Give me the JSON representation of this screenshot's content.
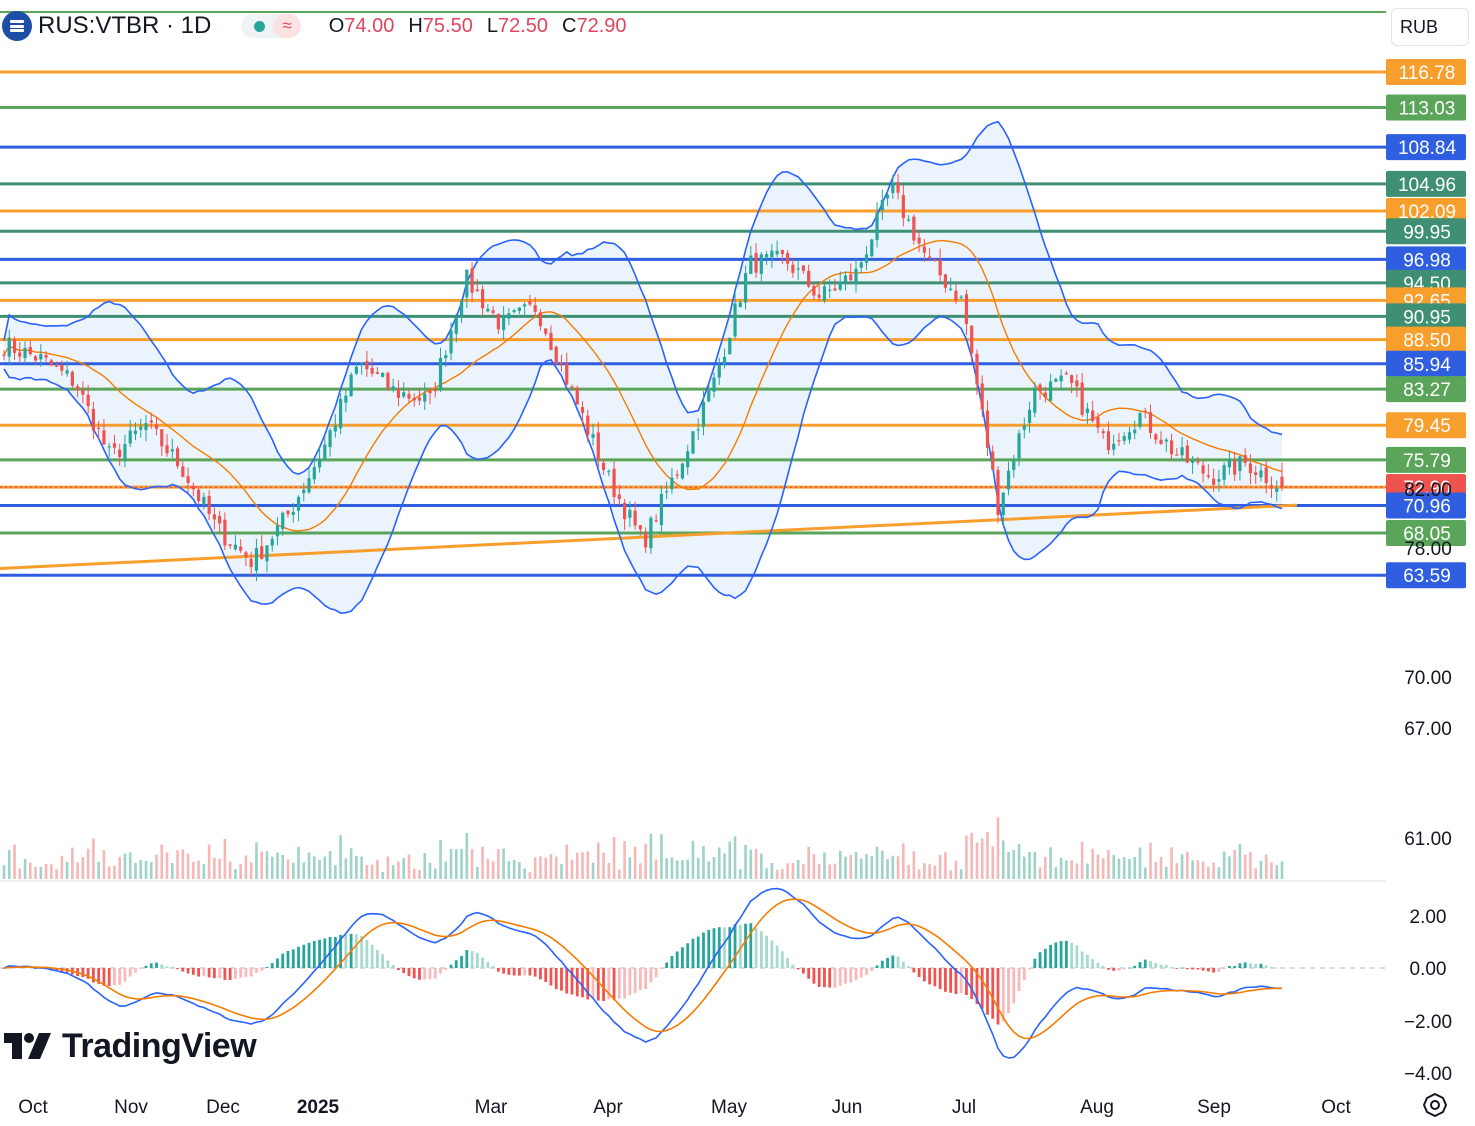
{
  "header": {
    "symbol": "RUS:VTBR · 1D",
    "ohlc": {
      "o_label": "O",
      "o": "74.00",
      "h_label": "H",
      "h": "75.50",
      "l_label": "L",
      "l": "72.50",
      "c_label": "C",
      "c": "72.90"
    }
  },
  "currency_button": "RUB",
  "logo_text": "TradingView",
  "colors": {
    "up": "#26a69a",
    "down": "#ef5350",
    "bb": "#2962ff",
    "ma": "#f57c00",
    "bb_fill": "#e8f1fb"
  },
  "chart_data": [
    {
      "type": "candlestick",
      "title": "RUS:VTBR · 1D",
      "x_tick_labels": [
        "Oct",
        "Nov",
        "Dec",
        "2025",
        "Mar",
        "Apr",
        "May",
        "Jun",
        "Jul",
        "Aug",
        "Sep",
        "Oct"
      ],
      "y_tick_labels": [
        "61.00",
        "67.00",
        "70.00",
        "78.00",
        "82.00"
      ],
      "ylim": [
        58.5,
        118.5
      ],
      "y_scale": "linear",
      "price_levels": [
        {
          "value": 116.78,
          "label": "116.78",
          "color": "#f89e2c"
        },
        {
          "value": 113.03,
          "label": "113.03",
          "color": "#5aa55a"
        },
        {
          "value": 108.84,
          "label": "108.84",
          "color": "#2f5fe0"
        },
        {
          "value": 104.96,
          "label": "104.96",
          "color": "#3e8f74"
        },
        {
          "value": 102.09,
          "label": "102.09",
          "color": "#f89e2c"
        },
        {
          "value": 99.95,
          "label": "99.95",
          "color": "#3e8f74"
        },
        {
          "value": 96.98,
          "label": "96.98",
          "color": "#2f5fe0"
        },
        {
          "value": 94.5,
          "label": "94.50",
          "color": "#3e8f74"
        },
        {
          "value": 92.65,
          "label": "92.65",
          "color": "#f89e2c"
        },
        {
          "value": 90.95,
          "label": "90.95",
          "color": "#3e8f74"
        },
        {
          "value": 88.5,
          "label": "88.50",
          "color": "#f89e2c"
        },
        {
          "value": 85.94,
          "label": "85.94",
          "color": "#2f5fe0"
        },
        {
          "value": 83.27,
          "label": "83.27",
          "color": "#5aa55a"
        },
        {
          "value": 79.45,
          "label": "79.45",
          "color": "#f89e2c"
        },
        {
          "value": 75.79,
          "label": "75.79",
          "color": "#5aa55a"
        },
        {
          "value": 72.91,
          "label": "72.91",
          "color": "#f89e2c"
        },
        {
          "value": 72.9,
          "label": "72.90",
          "color": "#ef5350",
          "dotted": true
        },
        {
          "value": 70.96,
          "label": "70.96",
          "color": "#2f5fe0"
        },
        {
          "value": 68.05,
          "label": "68.05",
          "color": "#5aa55a"
        },
        {
          "value": 63.59,
          "label": "63.59",
          "color": "#2f5fe0"
        }
      ],
      "trend_line": {
        "color": "#f89e2c",
        "points": [
          {
            "x": "Sep 2024",
            "y": 64.3
          },
          {
            "x": "Sep 2025",
            "y": 71.0
          }
        ]
      },
      "close_waypoints": [
        {
          "x": "Sep 2024",
          "close": 88.0
        },
        {
          "x": "Oct 2024",
          "close": 86.5
        },
        {
          "x": "Oct 2024",
          "close": 84.0
        },
        {
          "x": "Nov 2024",
          "close": 76.0
        },
        {
          "x": "Nov 2024",
          "close": 79.5
        },
        {
          "x": "Nov 2024",
          "close": 75.0
        },
        {
          "x": "Dec 2024",
          "close": 68.5
        },
        {
          "x": "Dec 2024",
          "close": 65.0
        },
        {
          "x": "Dec 2024",
          "close": 70.0
        },
        {
          "x": "Jan 2025",
          "close": 77.0
        },
        {
          "x": "Jan 2025",
          "close": 86.0
        },
        {
          "x": "Feb 2025",
          "close": 83.0
        },
        {
          "x": "Feb 2025",
          "close": 82.0
        },
        {
          "x": "Feb 2025",
          "close": 95.0
        },
        {
          "x": "Mar 2025",
          "close": 90.0
        },
        {
          "x": "Mar 2025",
          "close": 92.0
        },
        {
          "x": "Apr 2025",
          "close": 83.0
        },
        {
          "x": "Apr 2025",
          "close": 74.0
        },
        {
          "x": "Apr 2025",
          "close": 67.0
        },
        {
          "x": "Apr 2025",
          "close": 75.0
        },
        {
          "x": "Apr 2025",
          "close": 84.0
        },
        {
          "x": "May 2025",
          "close": 96.5
        },
        {
          "x": "May 2025",
          "close": 97.0
        },
        {
          "x": "Jun 2025",
          "close": 93.0
        },
        {
          "x": "Jun 2025",
          "close": 95.5
        },
        {
          "x": "Jun 2025",
          "close": 104.5
        },
        {
          "x": "Jul 2025",
          "close": 97.0
        },
        {
          "x": "Jul 2025",
          "close": 92.5
        },
        {
          "x": "Jul 2025",
          "close": 71.0
        },
        {
          "x": "Jul 2025",
          "close": 83.0
        },
        {
          "x": "Aug 2025",
          "close": 84.0
        },
        {
          "x": "Aug 2025",
          "close": 77.5
        },
        {
          "x": "Aug 2025",
          "close": 80.5
        },
        {
          "x": "Aug 2025",
          "close": 76.5
        },
        {
          "x": "Sep 2025",
          "close": 74.0
        },
        {
          "x": "Sep 2025",
          "close": 75.5
        },
        {
          "x": "Sep 2025",
          "close": 72.9
        }
      ],
      "last_ohlc": {
        "open": 74.0,
        "high": 75.5,
        "low": 72.5,
        "close": 72.9
      },
      "overlays": [
        "Bollinger Bands",
        "Moving average"
      ],
      "volume": "shown"
    },
    {
      "type": "line",
      "indicator": "MACD",
      "y_tick_labels": [
        "2.00",
        "0.00",
        "−2.00",
        "−4.00"
      ],
      "ylim": [
        -4.1,
        3.3
      ],
      "components": [
        "MACD line",
        "Signal line",
        "Histogram"
      ]
    }
  ]
}
